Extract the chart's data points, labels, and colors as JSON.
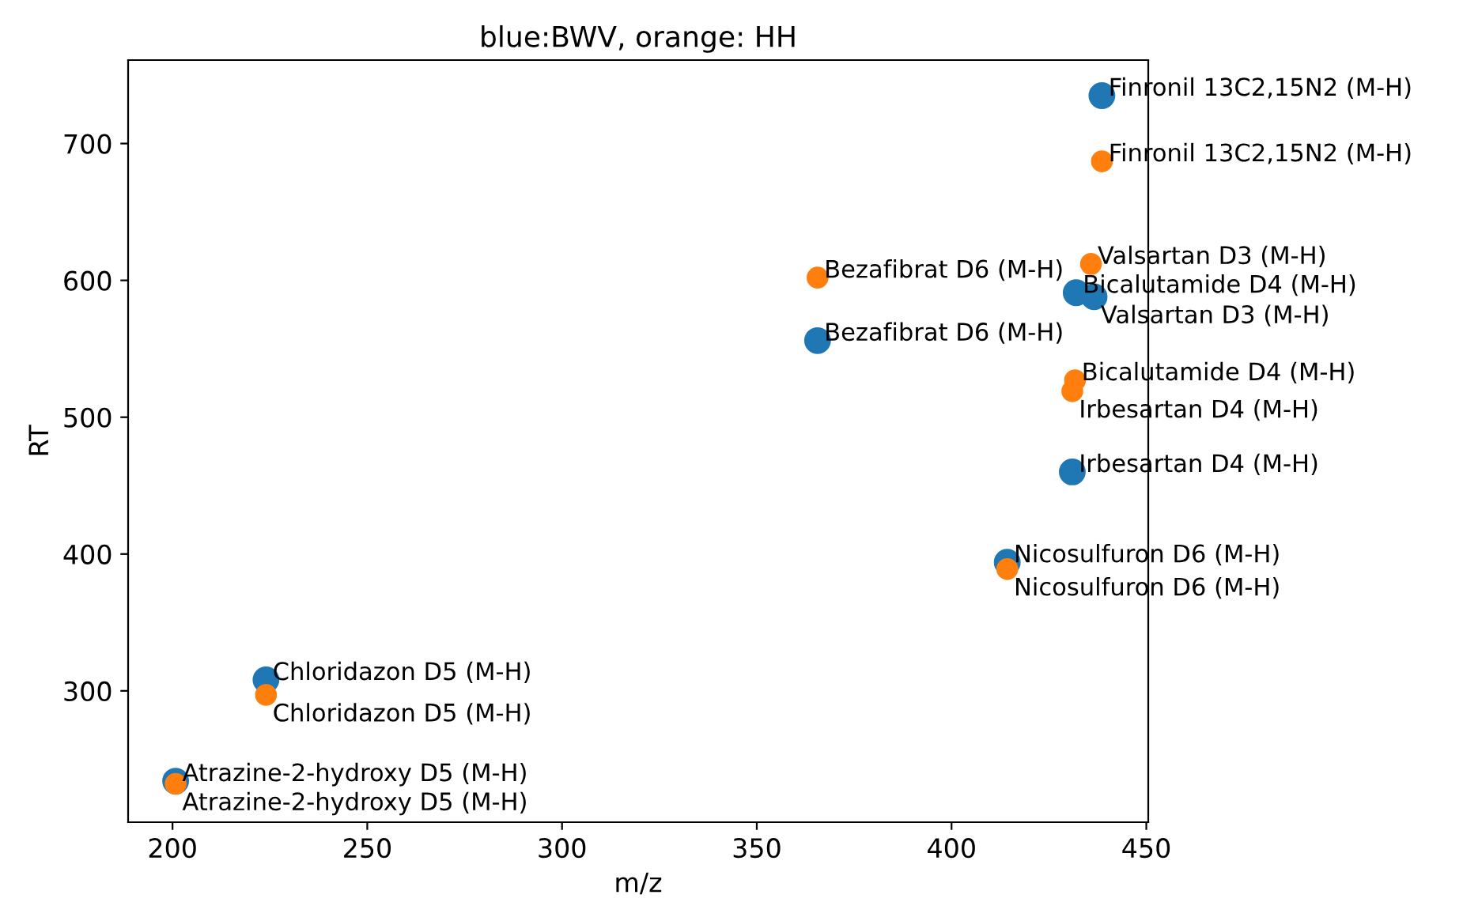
{
  "chart_data": {
    "type": "scatter",
    "title": "blue:BWV, orange: HH",
    "xlabel": "m/z",
    "ylabel": "RT",
    "xlim": [
      188.6,
      450.5
    ],
    "ylim": [
      204,
      761
    ],
    "xticks": [
      200,
      250,
      300,
      350,
      400,
      450
    ],
    "yticks": [
      300,
      400,
      500,
      600,
      700
    ],
    "marker": "circle",
    "grid": false,
    "series": [
      {
        "color": "#1f77b4",
        "x": [
          438.6,
          432,
          436.6,
          365.6,
          431,
          414.3,
          224,
          200.8
        ],
        "values": [
          735,
          591,
          588,
          556,
          460,
          394,
          308,
          234
        ]
      },
      {
        "color": "#ff7f0e",
        "x": [
          438.6,
          435.8,
          365.6,
          431.7,
          431,
          414.3,
          224,
          200.8
        ],
        "values": [
          687,
          612,
          602,
          527,
          519,
          389,
          297,
          232
        ]
      }
    ],
    "annotations": [
      {
        "text": "Finronil 13C2,15N2 (M-H)",
        "x": 438.6,
        "y": 735
      },
      {
        "text": "Bicalutamide D4 (M-H)",
        "x": 432,
        "y": 591
      },
      {
        "text": "Valsartan D3 (M-H)",
        "x": 436.6,
        "y": 588
      },
      {
        "text": "Bezafibrat D6 (M-H)",
        "x": 365.6,
        "y": 556
      },
      {
        "text": "Irbesartan D4 (M-H)",
        "x": 431,
        "y": 460
      },
      {
        "text": "Nicosulfuron D6 (M-H)",
        "x": 414.3,
        "y": 394
      },
      {
        "text": "Chloridazon D5 (M-H)",
        "x": 224,
        "y": 308
      },
      {
        "text": "Atrazine-2-hydroxy D5 (M-H)",
        "x": 200.8,
        "y": 234
      },
      {
        "text": "Finronil 13C2,15N2 (M-H)",
        "x": 438.6,
        "y": 687
      },
      {
        "text": "Valsartan D3 (M-H)",
        "x": 435.8,
        "y": 612
      },
      {
        "text": "Bezafibrat D6 (M-H)",
        "x": 365.6,
        "y": 602
      },
      {
        "text": "Bicalutamide D4 (M-H)",
        "x": 431.7,
        "y": 527
      },
      {
        "text": "Irbesartan D4 (M-H)",
        "x": 431,
        "y": 519
      },
      {
        "text": "Nicosulfuron D6 (M-H)",
        "x": 414.3,
        "y": 389
      },
      {
        "text": "Chloridazon D5 (M-H)",
        "x": 224,
        "y": 297
      },
      {
        "text": "Atrazine-2-hydroxy D5 (M-H)",
        "x": 200.8,
        "y": 232
      }
    ]
  }
}
